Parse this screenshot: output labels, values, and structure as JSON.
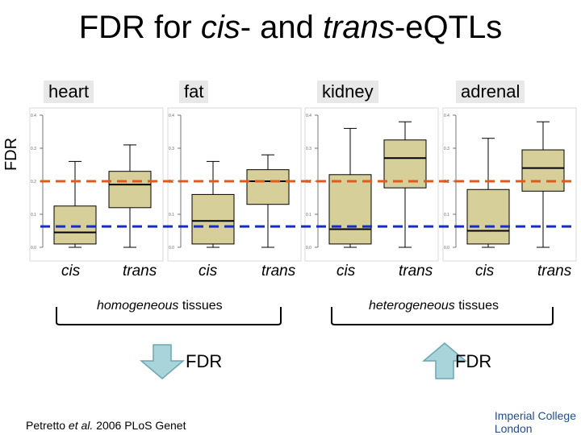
{
  "title": {
    "prefix": "FDR for ",
    "cis": "cis",
    "middle": "- and ",
    "trans": "trans",
    "suffix": "-eQTLs"
  },
  "ylabel": "FDR",
  "panels": [
    "heart",
    "fat",
    "kidney",
    "adrenal"
  ],
  "group_labels": {
    "homogeneous": {
      "italic": "homogeneous",
      "rest": " tissues"
    },
    "heterogeneous": {
      "italic": "heterogeneous",
      "rest": " tissues"
    }
  },
  "arrows": {
    "down_label": "FDR",
    "up_label": "FDR"
  },
  "citation": {
    "authors": "Petretto ",
    "etal": "et al.",
    "rest": " 2006 PLoS Genet"
  },
  "logo": {
    "line1": "Imperial College",
    "line2": "London"
  },
  "colors": {
    "box": "#d6cf9a",
    "red_line": "#e05a1e",
    "blue_line": "#1a2bbf"
  },
  "chart_data": {
    "type": "box",
    "title": "FDR for cis- and trans-eQTLs",
    "ylabel": "FDR",
    "categories": [
      "cis",
      "trans"
    ],
    "panels": [
      {
        "name": "heart",
        "ticks": [
          "0.4",
          "0.3",
          "0.2",
          "0.1",
          "0.0"
        ],
        "ylim": [
          0,
          0.4
        ],
        "boxes": [
          {
            "label": "cis",
            "min": 0.0,
            "q1": 0.01,
            "median": 0.045,
            "q3": 0.125,
            "max": 0.26
          },
          {
            "label": "trans",
            "min": 0.0,
            "q1": 0.12,
            "median": 0.19,
            "q3": 0.23,
            "max": 0.31
          }
        ]
      },
      {
        "name": "fat",
        "ticks": [
          "0.4",
          "0.3",
          "0.2",
          "0.1",
          "0.0"
        ],
        "ylim": [
          0,
          0.4
        ],
        "boxes": [
          {
            "label": "cis",
            "min": 0.0,
            "q1": 0.01,
            "median": 0.08,
            "q3": 0.16,
            "max": 0.26
          },
          {
            "label": "trans",
            "min": 0.0,
            "q1": 0.13,
            "median": 0.2,
            "q3": 0.235,
            "max": 0.28
          }
        ]
      },
      {
        "name": "kidney",
        "ticks": [
          "0.4",
          "0.3",
          "0.2",
          "0.1",
          "0.0"
        ],
        "ylim": [
          0,
          0.4
        ],
        "boxes": [
          {
            "label": "cis",
            "min": 0.0,
            "q1": 0.01,
            "median": 0.055,
            "q3": 0.22,
            "max": 0.36
          },
          {
            "label": "trans",
            "min": 0.0,
            "q1": 0.18,
            "median": 0.27,
            "q3": 0.325,
            "max": 0.38
          }
        ]
      },
      {
        "name": "adrenal",
        "ticks": [
          "0.4",
          "0.3",
          "0.2",
          "0.1",
          "0.0"
        ],
        "ylim": [
          0,
          0.4
        ],
        "boxes": [
          {
            "label": "cis",
            "min": 0.0,
            "q1": 0.01,
            "median": 0.05,
            "q3": 0.175,
            "max": 0.33
          },
          {
            "label": "trans",
            "min": 0.0,
            "q1": 0.17,
            "median": 0.24,
            "q3": 0.295,
            "max": 0.38
          }
        ]
      }
    ],
    "reference_lines": [
      {
        "color": "red",
        "style": "dashed",
        "value": 0.2
      },
      {
        "color": "blue",
        "style": "dashed",
        "value": 0.063
      }
    ],
    "xlabels": [
      "cis",
      "trans",
      "cis",
      "trans",
      "cis",
      "trans",
      "cis",
      "trans"
    ]
  }
}
